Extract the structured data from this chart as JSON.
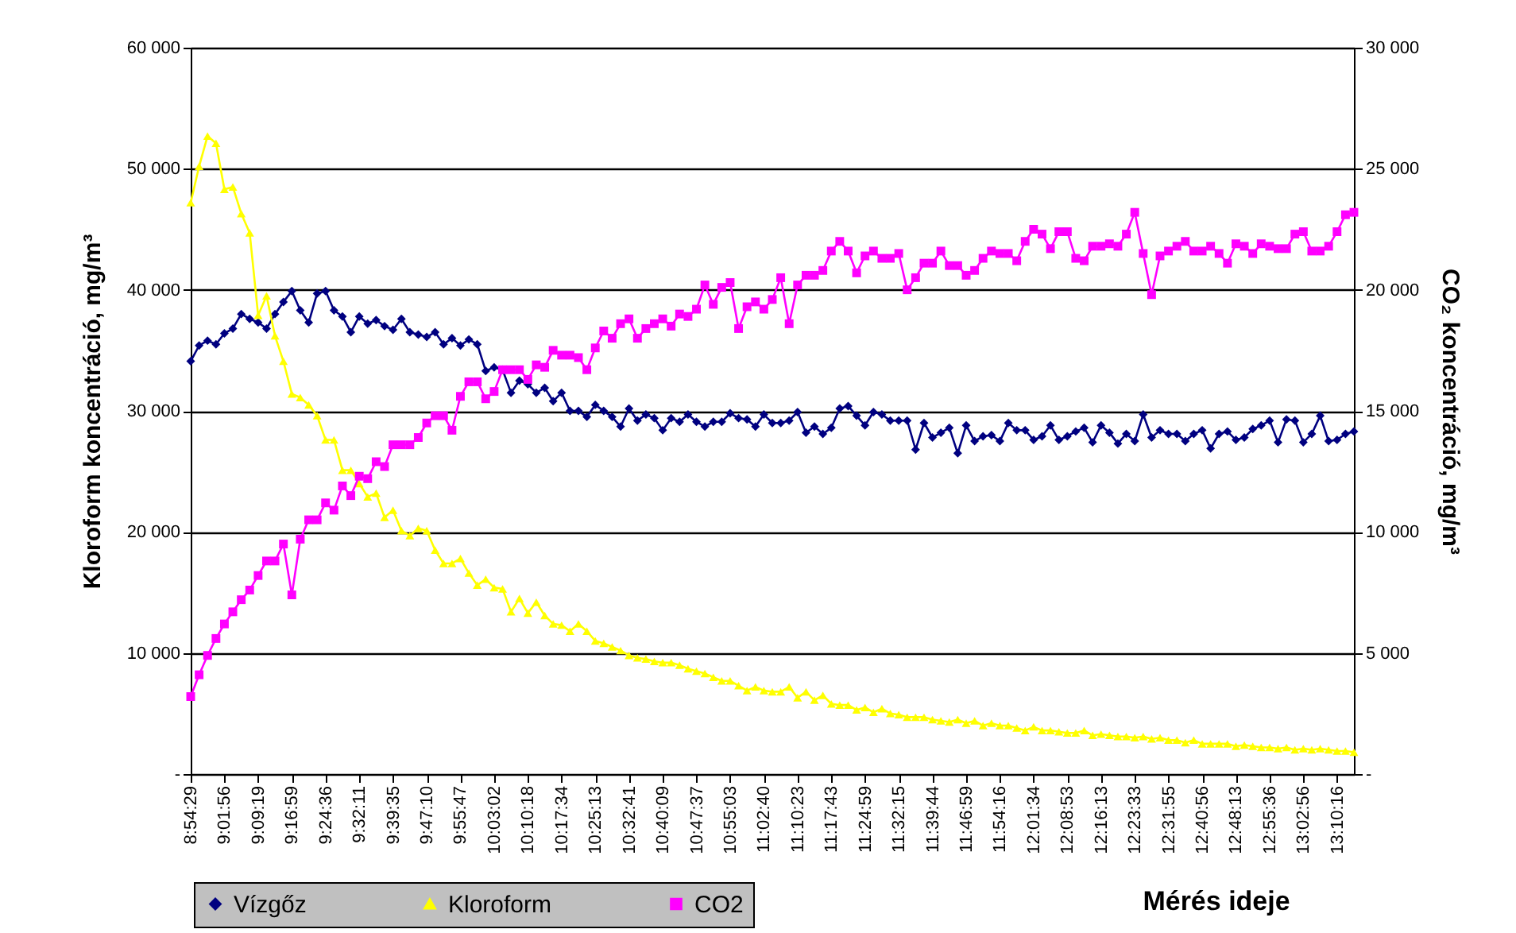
{
  "chart_data": {
    "type": "line",
    "xlabel": "Mérés ideje",
    "ylabel": "Kloroform koncentráció, mg/m³",
    "y2label": "CO₂ koncentráció, mg/m³",
    "categories": [
      "8:54:29",
      null,
      null,
      null,
      "9:01:56",
      null,
      null,
      null,
      "9:09:19",
      null,
      null,
      null,
      "9:16:59",
      null,
      null,
      null,
      "9:24:36",
      null,
      null,
      null,
      "9:32:11",
      null,
      null,
      null,
      "9:39:35",
      null,
      null,
      null,
      "9:47:10",
      null,
      null,
      null,
      "9:55:47",
      null,
      null,
      null,
      "10:03:02",
      null,
      null,
      null,
      "10:10:18",
      null,
      null,
      null,
      "10:17:34",
      null,
      null,
      null,
      "10:25:13",
      null,
      null,
      null,
      "10:32:41",
      null,
      null,
      null,
      "10:40:09",
      null,
      null,
      null,
      "10:47:37",
      null,
      null,
      null,
      "10:55:03",
      null,
      null,
      null,
      "11:02:40",
      null,
      null,
      null,
      "11:10:23",
      null,
      null,
      null,
      "11:17:43",
      null,
      null,
      null,
      "11:24:59",
      null,
      null,
      null,
      "11:32:15",
      null,
      null,
      null,
      "11:39:44",
      null,
      null,
      null,
      "11:46:59",
      null,
      null,
      null,
      "11:54:16",
      null,
      null,
      null,
      "12:01:34",
      null,
      null,
      null,
      "12:08:53",
      null,
      null,
      null,
      "12:16:13",
      null,
      null,
      null,
      "12:23:33",
      null,
      null,
      null,
      "12:31:55",
      null,
      null,
      null,
      "12:40:56",
      null,
      null,
      null,
      "12:48:13",
      null,
      null,
      null,
      "12:55:36",
      null,
      null,
      null,
      "13:02:56",
      null,
      null,
      null,
      "13:10:16",
      null,
      null
    ],
    "series": [
      {
        "name": "Vízgőz",
        "color": "#000080",
        "marker": "diamond",
        "values": [
          34100,
          35400,
          35800,
          35500,
          36400,
          36800,
          38000,
          37600,
          37300,
          36800,
          38000,
          39000,
          39900,
          38300,
          37300,
          39700,
          39900,
          38300,
          37800,
          36500,
          37800,
          37200,
          37500,
          37000,
          36700,
          37600,
          36500,
          36300,
          36100,
          36500,
          35500,
          36000,
          35400,
          35900,
          35500,
          33300,
          33600,
          33400,
          31500,
          32500,
          32200,
          31500,
          31900,
          30800,
          31500,
          30000,
          30000,
          29500,
          30500,
          30000,
          29500,
          28700,
          30200,
          29200,
          29700,
          29400,
          28400,
          29400,
          29100,
          29700,
          29100,
          28700,
          29100,
          29100,
          29800,
          29400,
          29300,
          28700,
          29700,
          29000,
          29000,
          29200,
          29900,
          28200,
          28700,
          28100,
          28600,
          30200,
          30400,
          29600,
          28800,
          29900,
          29700,
          29200,
          29200,
          29200,
          26800,
          29000,
          27800,
          28200,
          28600,
          26500,
          28800,
          27500,
          27900,
          28000,
          27500,
          29000,
          28400,
          28400,
          27600,
          27900,
          28800,
          27600,
          27900,
          28300,
          28600,
          27400,
          28800,
          28200,
          27300,
          28100,
          27500,
          29700,
          27800,
          28400,
          28100,
          28100,
          27500,
          28100,
          28400,
          26900,
          28100,
          28300,
          27600,
          27800,
          28500,
          28800,
          29200,
          27400,
          29300,
          29200,
          27400,
          28100,
          29600,
          27500,
          27600,
          28100,
          28300
        ]
      },
      {
        "name": "Kloroform",
        "color": "#ffff00",
        "marker": "triangle",
        "values": [
          47200,
          50200,
          52700,
          52100,
          48300,
          48500,
          46300,
          44700,
          37900,
          39500,
          36200,
          34100,
          31400,
          31100,
          30500,
          29600,
          27600,
          27600,
          25100,
          25100,
          24000,
          22900,
          23200,
          21200,
          21800,
          20100,
          19700,
          20300,
          20100,
          18500,
          17400,
          17400,
          17800,
          16600,
          15600,
          16100,
          15400,
          15300,
          13400,
          14500,
          13300,
          14200,
          13100,
          12400,
          12300,
          11800,
          12400,
          11800,
          11000,
          10800,
          10500,
          10200,
          9800,
          9600,
          9500,
          9300,
          9200,
          9200,
          9000,
          8700,
          8500,
          8300,
          8000,
          7700,
          7700,
          7300,
          6900,
          7200,
          6900,
          6800,
          6800,
          7200,
          6300,
          6800,
          6100,
          6500,
          5800,
          5700,
          5700,
          5300,
          5500,
          5100,
          5400,
          5000,
          4900,
          4700,
          4700,
          4700,
          4500,
          4400,
          4300,
          4500,
          4200,
          4400,
          4000,
          4200,
          4000,
          4000,
          3800,
          3600,
          3900,
          3600,
          3600,
          3500,
          3400,
          3400,
          3600,
          3200,
          3300,
          3200,
          3100,
          3100,
          3000,
          3100,
          2900,
          3000,
          2800,
          2800,
          2600,
          2800,
          2500,
          2500,
          2500,
          2500,
          2300,
          2400,
          2300,
          2200,
          2200,
          2100,
          2200,
          2000,
          2100,
          2000,
          2100,
          2000,
          1900,
          1900,
          1800
        ]
      },
      {
        "name": "CO2",
        "color": "#ff00ff",
        "marker": "square",
        "axis": "y2",
        "values": [
          3200,
          4100,
          4900,
          5600,
          6200,
          6700,
          7200,
          7600,
          8200,
          8800,
          8800,
          9500,
          7400,
          9700,
          10500,
          10500,
          11200,
          10900,
          11900,
          11500,
          12300,
          12200,
          12900,
          12700,
          13600,
          13600,
          13600,
          13900,
          14500,
          14800,
          14800,
          14200,
          15600,
          16200,
          16200,
          15500,
          15800,
          16700,
          16700,
          16700,
          16300,
          16900,
          16800,
          17500,
          17300,
          17300,
          17200,
          16700,
          17600,
          18300,
          18000,
          18600,
          18800,
          18000,
          18400,
          18600,
          18800,
          18500,
          19000,
          18900,
          19200,
          20200,
          19400,
          20100,
          20300,
          18400,
          19300,
          19500,
          19200,
          19600,
          20500,
          18600,
          20200,
          20600,
          20600,
          20800,
          21600,
          22000,
          21600,
          20700,
          21400,
          21600,
          21300,
          21300,
          21500,
          20000,
          20500,
          21100,
          21100,
          21600,
          21000,
          21000,
          20600,
          20800,
          21300,
          21600,
          21500,
          21500,
          21200,
          22000,
          22500,
          22300,
          21700,
          22400,
          22400,
          21300,
          21200,
          21800,
          21800,
          21900,
          21800,
          22300,
          23200,
          21500,
          19800,
          21400,
          21600,
          21800,
          22000,
          21600,
          21600,
          21800,
          21500,
          21100,
          21900,
          21800,
          21500,
          21900,
          21800,
          21700,
          21700,
          22300,
          22400,
          21600,
          21600,
          21800,
          22400,
          23100,
          23200
        ]
      }
    ],
    "ylim": [
      0,
      60000
    ],
    "yticks": [
      {
        "value": 0,
        "label": "-"
      },
      {
        "value": 10000,
        "label": "10 000"
      },
      {
        "value": 20000,
        "label": "20 000"
      },
      {
        "value": 30000,
        "label": "30 000"
      },
      {
        "value": 40000,
        "label": "40 000"
      },
      {
        "value": 50000,
        "label": "50 000"
      },
      {
        "value": 60000,
        "label": "60 000"
      }
    ],
    "y2lim": [
      0,
      30000
    ],
    "y2ticks": [
      {
        "value": 0,
        "label": "-"
      },
      {
        "value": 5000,
        "label": "5 000"
      },
      {
        "value": 10000,
        "label": "10 000"
      },
      {
        "value": 15000,
        "label": "15 000"
      },
      {
        "value": 20000,
        "label": "20 000"
      },
      {
        "value": 25000,
        "label": "25 000"
      },
      {
        "value": 30000,
        "label": "30 000"
      }
    ],
    "grid": "y",
    "legend": "bottom left",
    "line_style": "solid"
  }
}
